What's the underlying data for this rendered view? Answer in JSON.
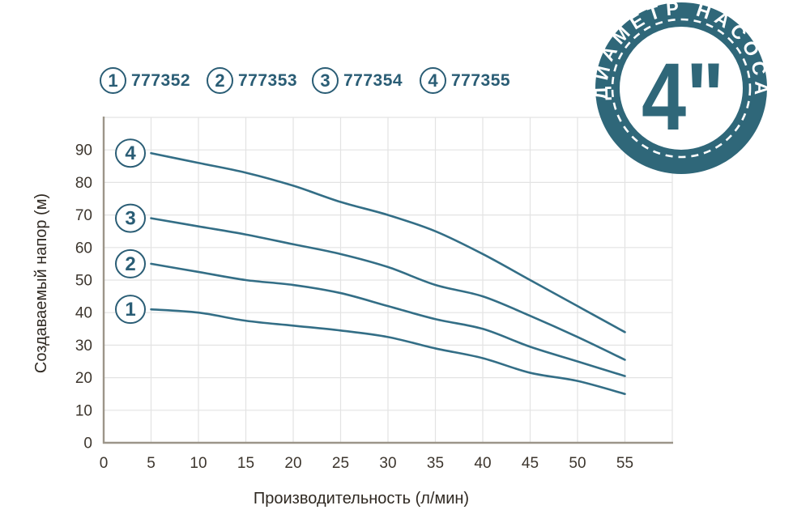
{
  "legend": {
    "items": [
      {
        "index": "1",
        "model": "777352"
      },
      {
        "index": "2",
        "model": "777353"
      },
      {
        "index": "3",
        "model": "777354"
      },
      {
        "index": "4",
        "model": "777355"
      }
    ]
  },
  "badge": {
    "arc_text": "ДИАМЕТР НАСОСА",
    "size_label": "4\""
  },
  "colors": {
    "curve": "#336e86",
    "teal_text": "#2a5d75",
    "badge": "#2f6779",
    "grid": "#e3e3e3",
    "axis": "#9c9589",
    "tick": "#3d362e",
    "title": "#2f2922"
  },
  "chart_data": {
    "type": "line",
    "title": "",
    "xlabel": "Производительность (л/мин)",
    "ylabel": "Создаваемый напор (м)",
    "xlim": [
      0,
      60
    ],
    "ylim": [
      0,
      100
    ],
    "grid": true,
    "xticks": [
      0,
      5,
      10,
      15,
      20,
      25,
      30,
      35,
      40,
      45,
      50,
      55
    ],
    "yticks": [
      0,
      10,
      20,
      30,
      40,
      50,
      60,
      70,
      80,
      90
    ],
    "x": [
      5,
      10,
      15,
      20,
      25,
      30,
      35,
      40,
      45,
      50,
      55
    ],
    "series": [
      {
        "name": "4",
        "model": "777355",
        "values": [
          89,
          86,
          83,
          79,
          74,
          70,
          65,
          58,
          50,
          42,
          34
        ]
      },
      {
        "name": "3",
        "model": "777354",
        "values": [
          69,
          66.5,
          64,
          61,
          58,
          54,
          48.5,
          45,
          39,
          32.5,
          25.5
        ]
      },
      {
        "name": "2",
        "model": "777353",
        "values": [
          55,
          52.5,
          50,
          48.5,
          46,
          42,
          38,
          35,
          29.5,
          25,
          20.5
        ]
      },
      {
        "name": "1",
        "model": "777352",
        "values": [
          41,
          40,
          37.5,
          36,
          34.5,
          32.5,
          29,
          26,
          21.5,
          19,
          15
        ]
      }
    ]
  }
}
